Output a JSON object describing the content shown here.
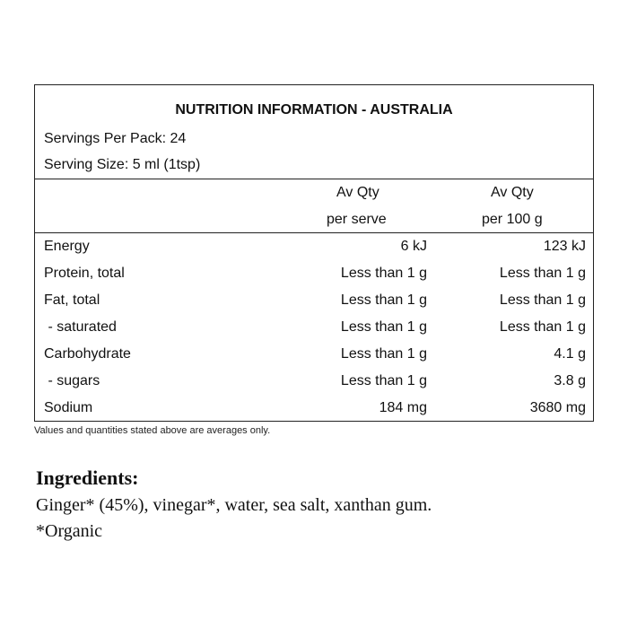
{
  "panel": {
    "title": "NUTRITION INFORMATION - AUSTRALIA",
    "servings_per_pack": "Servings Per Pack: 24",
    "serving_size": "Serving Size: 5 ml (1tsp)",
    "col1_line1": "Av Qty",
    "col1_line2": "per serve",
    "col2_line1": "Av Qty",
    "col2_line2": "per 100 g",
    "rows": [
      {
        "label": "Energy",
        "per_serve": "6 kJ",
        "per_100g": "123 kJ"
      },
      {
        "label": "Protein, total",
        "per_serve": "Less than 1 g",
        "per_100g": "Less than 1 g"
      },
      {
        "label": "Fat, total",
        "per_serve": "Less than 1 g",
        "per_100g": "Less than 1 g"
      },
      {
        "label": " - saturated",
        "per_serve": "Less than 1 g",
        "per_100g": "Less than 1 g"
      },
      {
        "label": "Carbohydrate",
        "per_serve": "Less than 1 g",
        "per_100g": "4.1 g"
      },
      {
        "label": " - sugars",
        "per_serve": "Less than 1 g",
        "per_100g": "3.8 g"
      },
      {
        "label": "Sodium",
        "per_serve": "184 mg",
        "per_100g": "3680 mg"
      }
    ],
    "footnote": "Values and quantities stated above are averages only."
  },
  "ingredients": {
    "heading": "Ingredients:",
    "text": "Ginger* (45%), vinegar*, water, sea salt, xanthan gum.",
    "note": "*Organic"
  }
}
